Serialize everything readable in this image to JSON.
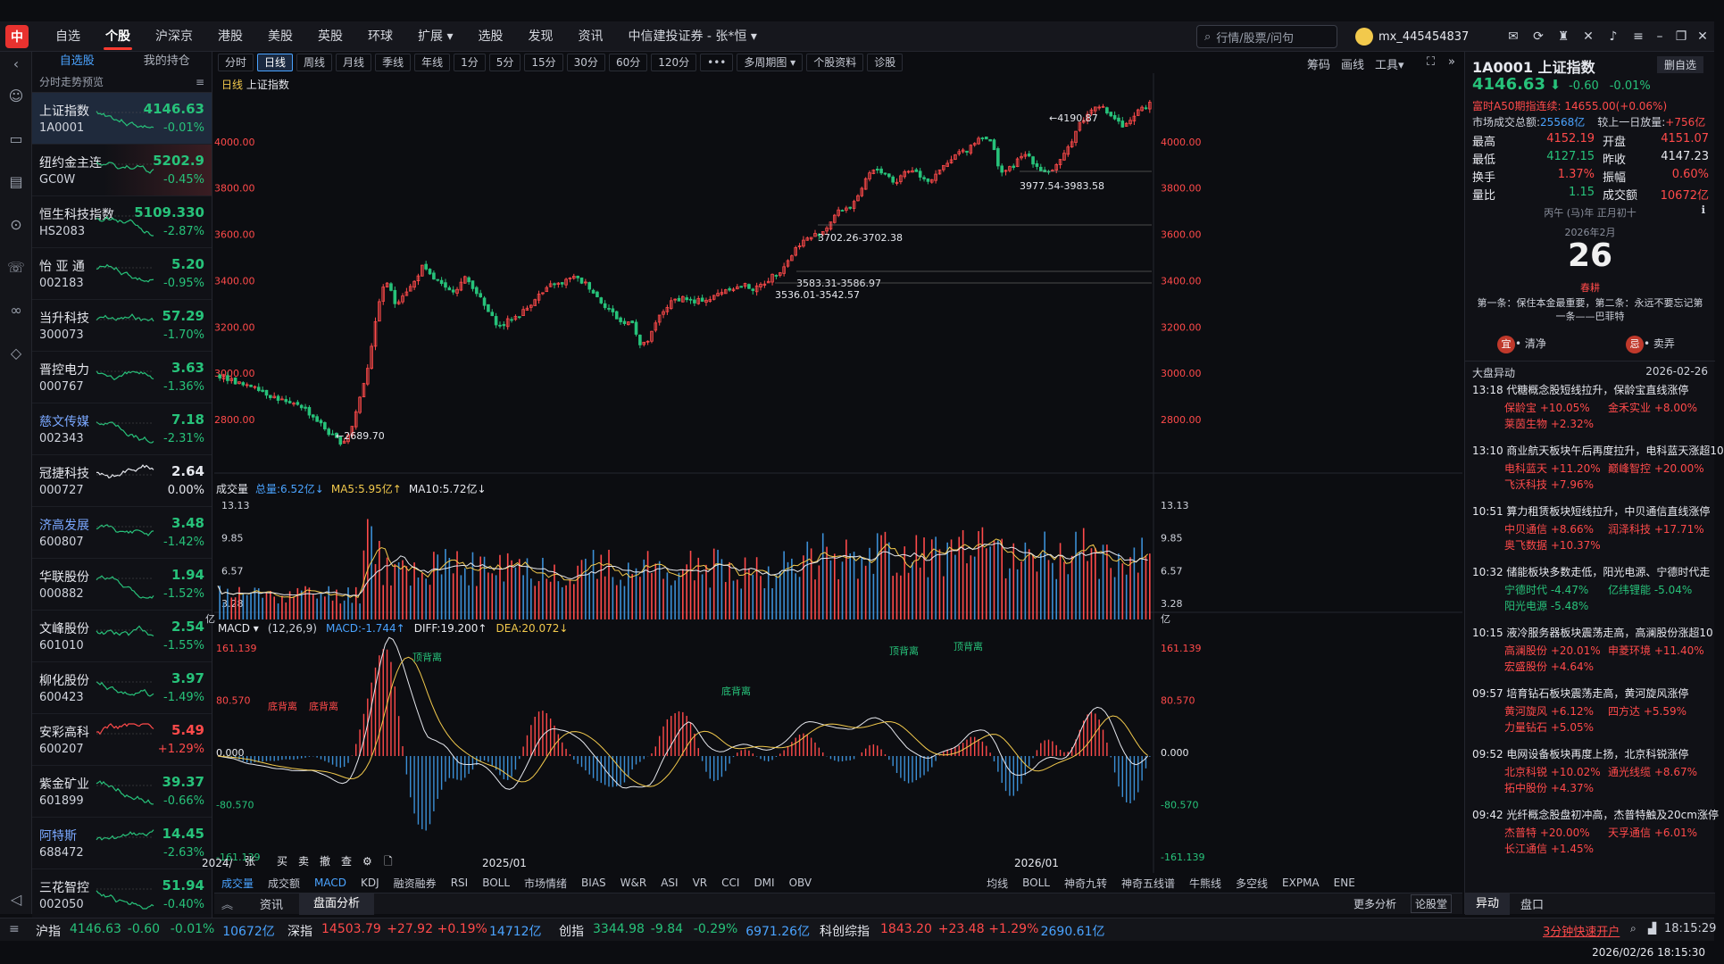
{
  "nav": {
    "logo": "中",
    "items": [
      "自选",
      "个股",
      "沪深京",
      "港股",
      "美股",
      "英股",
      "环球",
      "扩展 ▾",
      "选股",
      "发现",
      "资讯",
      "中信建投证券 - 张*恒 ▾"
    ],
    "search_placeholder": "行情/股票/问句",
    "username": "mx_445454837"
  },
  "watchlist": {
    "tabs": [
      "自选股",
      "我的持仓"
    ],
    "subtitle": "分时走势预览",
    "rows": [
      {
        "name": "上证指数",
        "code": "1A0001",
        "price": "4146.63",
        "pct": "-0.01%",
        "dir": "dn"
      },
      {
        "name": "纽约金主连",
        "code": "GC0W",
        "price": "5202.9",
        "pct": "-0.45%",
        "dir": "dn"
      },
      {
        "name": "恒生科技指数",
        "code": "HS2083",
        "price": "5109.330",
        "pct": "-2.87%",
        "dir": "dn"
      },
      {
        "name": "怡 亚 通",
        "code": "002183",
        "price": "5.20",
        "pct": "-0.95%",
        "dir": "dn"
      },
      {
        "name": "当升科技",
        "code": "300073",
        "price": "57.29",
        "pct": "-1.70%",
        "dir": "dn"
      },
      {
        "name": "晋控电力",
        "code": "000767",
        "price": "3.63",
        "pct": "-1.36%",
        "dir": "dn"
      },
      {
        "name": "慈文传媒",
        "code": "002343",
        "price": "7.18",
        "pct": "-2.31%",
        "dir": "dn"
      },
      {
        "name": "冠捷科技",
        "code": "000727",
        "price": "2.64",
        "pct": "0.00%",
        "dir": "wh"
      },
      {
        "name": "济高发展",
        "code": "600807",
        "price": "3.48",
        "pct": "-1.42%",
        "dir": "dn"
      },
      {
        "name": "华联股份",
        "code": "000882",
        "price": "1.94",
        "pct": "-1.52%",
        "dir": "dn"
      },
      {
        "name": "文峰股份",
        "code": "601010",
        "price": "2.54",
        "pct": "-1.55%",
        "dir": "dn"
      },
      {
        "name": "柳化股份",
        "code": "600423",
        "price": "3.97",
        "pct": "-1.49%",
        "dir": "dn"
      },
      {
        "name": "安彩高科",
        "code": "600207",
        "price": "5.49",
        "pct": "+1.29%",
        "dir": "up"
      },
      {
        "name": "紫金矿业",
        "code": "601899",
        "price": "39.37",
        "pct": "-0.66%",
        "dir": "dn"
      },
      {
        "name": "阿特斯",
        "code": "688472",
        "price": "14.45",
        "pct": "-2.63%",
        "dir": "dn"
      },
      {
        "name": "三花智控",
        "code": "002050",
        "price": "51.94",
        "pct": "-0.40%",
        "dir": "dn"
      }
    ]
  },
  "toolbar": {
    "periods": [
      "分时",
      "日线",
      "周线",
      "月线",
      "季线",
      "年线",
      "1分",
      "5分",
      "15分",
      "30分",
      "60分",
      "120分",
      "•••",
      "多周期图 ▾",
      "个股资料",
      "诊股"
    ],
    "active_period": "日线",
    "right": [
      "筹码",
      "画线",
      "工具▾"
    ]
  },
  "chart_label": {
    "period": "日线",
    "name": "上证指数"
  },
  "volume_header": {
    "title": "成交量",
    "total": "总量:6.52亿↓",
    "ma5": "MA5:5.95亿↑",
    "ma10": "MA10:5.72亿↓"
  },
  "macd_header": {
    "title": "MACD ▾",
    "params": "(12,26,9)",
    "macd": "MACD:-1.744↑",
    "diff": "DIFF:19.200↑",
    "dea": "DEA:20.072↓"
  },
  "chart_data": [
    {
      "type": "candlestick",
      "title": "日线 上证指数",
      "ylim": [
        2600,
        4250
      ],
      "yticks": [
        "4000.00",
        "3800.00",
        "3600.00",
        "3400.00",
        "3200.00",
        "3000.00",
        "2800.00"
      ],
      "xticks": [
        "2024/",
        "2025/01",
        "2026/01"
      ],
      "series_close_approx": [
        2990,
        2975,
        2960,
        2940,
        2950,
        2920,
        2900,
        2885,
        2860,
        2870,
        2835,
        2800,
        2760,
        2720,
        2700,
        2760,
        2900,
        3050,
        3300,
        3400,
        3300,
        3350,
        3380,
        3460,
        3420,
        3390,
        3350,
        3370,
        3410,
        3370,
        3300,
        3240,
        3200,
        3230,
        3250,
        3280,
        3330,
        3350,
        3390,
        3380,
        3420,
        3400,
        3380,
        3330,
        3290,
        3250,
        3210,
        3230,
        3110,
        3150,
        3240,
        3290,
        3320,
        3330,
        3300,
        3320,
        3320,
        3350,
        3370,
        3370,
        3380,
        3360,
        3390,
        3420,
        3450,
        3500,
        3560,
        3580,
        3600,
        3620,
        3680,
        3710,
        3720,
        3800,
        3860,
        3880,
        3860,
        3820,
        3870,
        3880,
        3850,
        3830,
        3890,
        3900,
        3950,
        3960,
        4000,
        4030,
        3990,
        3870,
        3880,
        3920,
        3950,
        3900,
        3870,
        3880,
        3920,
        4000,
        4080,
        4120,
        4170,
        4130,
        4100,
        4060,
        4090,
        4150,
        4160
      ],
      "annotations": [
        "4190.87",
        "3977.54-3983.58",
        "3702.26-3702.38",
        "3583.31-3586.97",
        "3536.01-3542.57",
        "2689.70"
      ]
    },
    {
      "type": "bar",
      "title": "成交量",
      "yticks": [
        "13.13",
        "9.85",
        "6.57",
        "3.28"
      ],
      "unit": "亿"
    },
    {
      "type": "line",
      "title": "MACD",
      "yticks": [
        "161.139",
        "80.570",
        "0.000",
        "-80.570",
        "-161.139"
      ],
      "labels": [
        "顶背离",
        "底背离",
        "底背离",
        "顶背离",
        "底背离",
        "顶背离",
        "底背离"
      ]
    }
  ],
  "indicators": [
    "成交量",
    "成交额",
    "MACD",
    "KDJ",
    "融资融券",
    "RSI",
    "BOLL",
    "市场情绪",
    "BIAS",
    "W&R",
    "ASI",
    "VR",
    "CCI",
    "DMI",
    "OBV",
    "均线",
    "BOLL",
    "神奇九转",
    "神奇五线谱",
    "牛熊线",
    "多空线",
    "EXPMA",
    "ENE"
  ],
  "bottom_tabs": [
    "资讯",
    "盘面分析"
  ],
  "bottom_right": [
    "更多分析",
    "论股堂"
  ],
  "right_panel": {
    "title": "1A0001 上证指数",
    "delete_btn": "删自选",
    "price": "4146.63",
    "change": "-0.60",
    "pct": "-0.01%",
    "futures": "富时A50期指连续: 14655.00(+0.06%)",
    "turnover_label": "市场成交总额:",
    "turnover_value": "25568亿",
    "vs_label": "较上一日放量:",
    "vs_value": "+756亿",
    "quote": [
      [
        "最高",
        "4152.19",
        "开盘",
        "4151.07"
      ],
      [
        "最低",
        "4127.15",
        "昨收",
        "4147.23"
      ],
      [
        "换手",
        "1.37%",
        "振幅",
        "0.60%"
      ],
      [
        "量比",
        "1.15",
        "成交额",
        "10672亿"
      ]
    ],
    "lunar": "丙午 (马)年 正月初十",
    "month": "2026年2月",
    "day": "26",
    "festival": "春耕",
    "motto": "第一条：保住本金最重要，第二条：永远不要忘记第一条——巴菲特",
    "yi": "宜",
    "yi_text": "• 清净",
    "ji": "忌",
    "ji_text": "• 卖弄",
    "alerts_title": "大盘异动",
    "alerts_date": "2026-02-26",
    "alerts": [
      {
        "t": "13:18 代糖概念股短线拉升，保龄宝直线涨停",
        "s": [
          [
            "保龄宝 +10.05%",
            "金禾实业 +8.00%"
          ],
          [
            "莱茵生物 +2.32%"
          ]
        ]
      },
      {
        "t": "13:10 商业航天板块午后再度拉升，电科蓝天涨超10",
        "s": [
          [
            "电科蓝天 +11.20%",
            "巅峰智控 +20.00%"
          ],
          [
            "飞沃科技 +7.96%"
          ]
        ]
      },
      {
        "t": "10:51 算力租赁板块短线拉升，中贝通信直线涨停",
        "s": [
          [
            "中贝通信 +8.66%",
            "润泽科技 +17.71%"
          ],
          [
            "奥飞数据 +10.37%"
          ]
        ]
      },
      {
        "t": "10:32 储能板块多数走低，阳光电源、宁德时代走",
        "s": [
          [
            "宁德时代 -4.47%",
            "亿纬锂能 -5.04%"
          ],
          [
            "阳光电源 -5.48%"
          ]
        ]
      },
      {
        "t": "10:15 液冷服务器板块震荡走高，高澜股份涨超10",
        "s": [
          [
            "高澜股份 +20.01%",
            "申菱环境 +11.40%"
          ],
          [
            "宏盛股份 +4.64%"
          ]
        ]
      },
      {
        "t": "09:57 培育钻石板块震荡走高，黄河旋风涨停",
        "s": [
          [
            "黄河旋风 +6.12%",
            "四方达 +5.59%"
          ],
          [
            "力量钻石 +5.05%"
          ]
        ]
      },
      {
        "t": "09:52 电网设备板块再度上扬，北京科锐涨停",
        "s": [
          [
            "北京科锐 +10.02%",
            "通光线缆 +8.67%"
          ],
          [
            "拓中股份 +4.37%"
          ]
        ]
      },
      {
        "t": "09:42 光纤概念股盘初冲高，杰普特触及20cm涨停",
        "s": [
          [
            "杰普特 +20.00%",
            "天孚通信 +6.01%"
          ],
          [
            "长江通信 +1.45%"
          ]
        ]
      }
    ],
    "tabs": [
      "异动",
      "盘口"
    ]
  },
  "status": {
    "items": [
      {
        "label": "沪指",
        "val": "4146.63",
        "chg": "-0.60",
        "pct": "-0.01%",
        "amt": "10672亿",
        "dir": "dn"
      },
      {
        "label": "深指",
        "val": "14503.79",
        "chg": "+27.92",
        "pct": "+0.19%",
        "amt": "14712亿",
        "dir": "up"
      },
      {
        "label": "创指",
        "val": "3344.98",
        "chg": "-9.84",
        "pct": "-0.29%",
        "amt": "6971.26亿",
        "dir": "dn"
      },
      {
        "label": "科创综指",
        "val": "1843.20",
        "chg": "+23.48",
        "pct": "+1.29%",
        "amt": "2690.61亿",
        "dir": "up"
      }
    ],
    "promo": "3分钟快速开户",
    "time": "18:15:29",
    "datetime": "2026/02/26 18:15:30"
  }
}
